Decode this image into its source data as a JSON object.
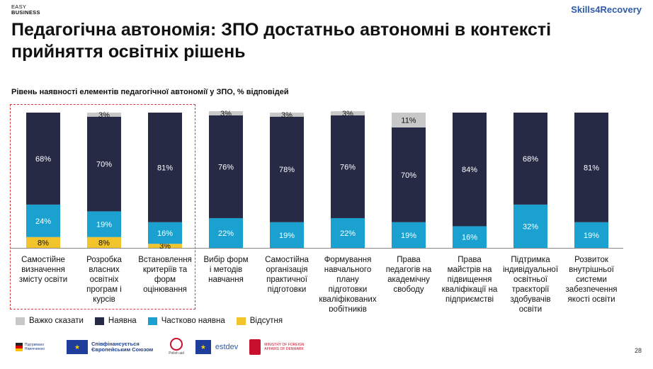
{
  "brand": {
    "line1": "EASY",
    "line2": "BUSINESS",
    "right": "Skills4Recovery"
  },
  "title": "Педагогічна автономія: ЗПО достатньо автономні в контексті прийняття освітніх рішень",
  "subtitle": "Рівень наявності елементів педагогічної автономії у ЗПО, % відповідей",
  "colors": {
    "hard": "#c8c8c8",
    "yes": "#262a45",
    "partial": "#1aa1cf",
    "no": "#f2c42c"
  },
  "chart_data": {
    "type": "bar",
    "stacked": true,
    "ylim": [
      0,
      100
    ],
    "categories": [
      "Самостійне визначення змісту освіти",
      "Розробка власних освітніх програм і курсів",
      "Встановлення критеріїв та форм оцінювання",
      "Вибір форм і методів навчання",
      "Самостійна організація практичної підготовки",
      "Формування навчального плану підготовки кваліфікованих робітників",
      "Права педагогів на академічну свободу",
      "Права майстрів на підвищення кваліфікації на підприємстві",
      "Підтримка індивідуальної освітньої траєкторії здобувачів освіти",
      "Розвиток внутрішньої системи забезпечення якості освіти"
    ],
    "category_lines": [
      [
        "Самостійне",
        "визначення",
        "змісту освіти"
      ],
      [
        "Розробка",
        "власних",
        "освітніх",
        "програм і",
        "курсів"
      ],
      [
        "Встановлення",
        "критеріїв та",
        "форм",
        "оцінювання"
      ],
      [
        "Вибір форм",
        "і методів",
        "навчання"
      ],
      [
        "Самостійна",
        "організація",
        "практичної",
        "підготовки"
      ],
      [
        "Формування",
        "навчального",
        "плану",
        "підготовки",
        "кваліфікованих",
        "робітників"
      ],
      [
        "Права",
        "педагогів на",
        "академічну",
        "свободу"
      ],
      [
        "Права",
        "майстрів на",
        "підвищення",
        "кваліфікації на",
        "підприємстві"
      ],
      [
        "Підтримка",
        "індивідуальної",
        "освітньої",
        "траєкторії",
        "здобувачів",
        "освіти"
      ],
      [
        "Розвиток",
        "внутрішньої",
        "системи",
        "забезпечення",
        "якості освіти"
      ]
    ],
    "series": [
      {
        "key": "no",
        "name": "Відсутня",
        "values": [
          8,
          8,
          3,
          0,
          0,
          0,
          0,
          0,
          0,
          0
        ]
      },
      {
        "key": "partial",
        "name": "Частково наявна",
        "values": [
          24,
          19,
          16,
          22,
          19,
          22,
          19,
          16,
          32,
          19
        ]
      },
      {
        "key": "yes",
        "name": "Наявна",
        "values": [
          68,
          70,
          81,
          76,
          78,
          76,
          70,
          84,
          68,
          81
        ]
      },
      {
        "key": "hard",
        "name": "Важко сказати",
        "values": [
          0,
          3,
          0,
          3,
          3,
          3,
          11,
          0,
          0,
          0
        ]
      }
    ],
    "legend": [
      "Важко сказати",
      "Наявна",
      "Частково наявна",
      "Відсутня"
    ],
    "highlighted_categories": [
      0,
      1,
      2
    ]
  },
  "footer": {
    "logo1": "Підтримано Німеччиною",
    "logo2_line1": "Співфінансується",
    "logo2_line2": "Європейським Союзом",
    "logo3": "Polish aid",
    "logo4": "estdev",
    "logo5": "MINISTRY OF FOREIGN AFFAIRS OF DENMARK"
  },
  "page_number": "28"
}
